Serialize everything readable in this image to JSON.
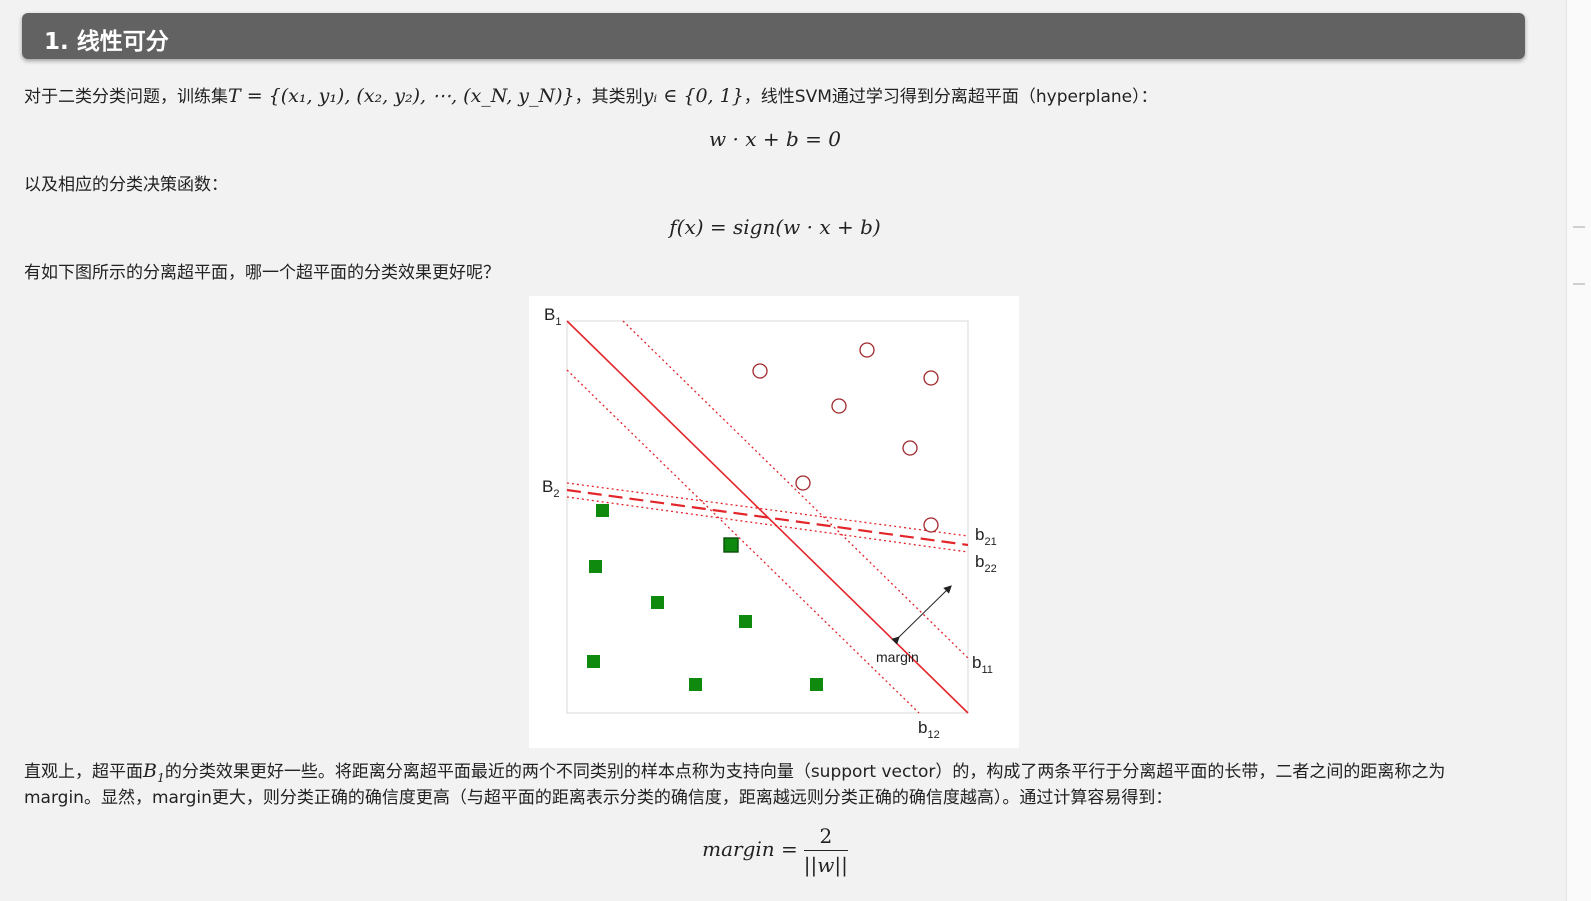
{
  "section": {
    "title": "1. 线性可分"
  },
  "intro": {
    "prefix": "对于二类分类问题，训练集",
    "training_set": "T = {(x₁, y₁), (x₂, y₂), ⋯, (x_N, y_N)}",
    "mid": "，其类别",
    "label_set": "yᵢ ∈ {0, 1}",
    "suffix": "，线性SVM通过学习得到分离超平面（hyperplane）："
  },
  "eq_hyperplane": "w · x + b = 0",
  "decision_intro": "以及相应的分类决策函数：",
  "eq_decision": "f(x) = sign(w · x + b)",
  "figure_question": "有如下图所示的分离超平面，哪一个超平面的分类效果更好呢？",
  "figure": {
    "labels": {
      "B1": "B",
      "B1_sub": "1",
      "B2": "B",
      "B2_sub": "2",
      "b21": "b",
      "b21_sub": "21",
      "b22": "b",
      "b22_sub": "22",
      "b11": "b",
      "b11_sub": "11",
      "b12": "b",
      "b12_sub": "12",
      "margin": "margin"
    },
    "colors": {
      "line": "#e3262b",
      "circle": "#a0282c",
      "square": "#0f8a0f"
    }
  },
  "conclusion": {
    "line1_a": "直观上，超平面",
    "line1_math": "B",
    "line1_math_sub": "1",
    "line1_b": "的分类效果更好一些。将距离分离超平面最近的两个不同类别的样本点称为支持向量（support vector）的，构成了两条平行于分离超平面的长带，二者之间的距离称之为",
    "line2": "margin。显然，margin更大，则分类正确的确信度更高（与超平面的距离表示分类的确信度，距离越远则分类正确的确信度越高）。通过计算容易得到："
  },
  "eq_margin": {
    "lhs": "margin =",
    "numerator": "2",
    "denominator": "||w||"
  }
}
